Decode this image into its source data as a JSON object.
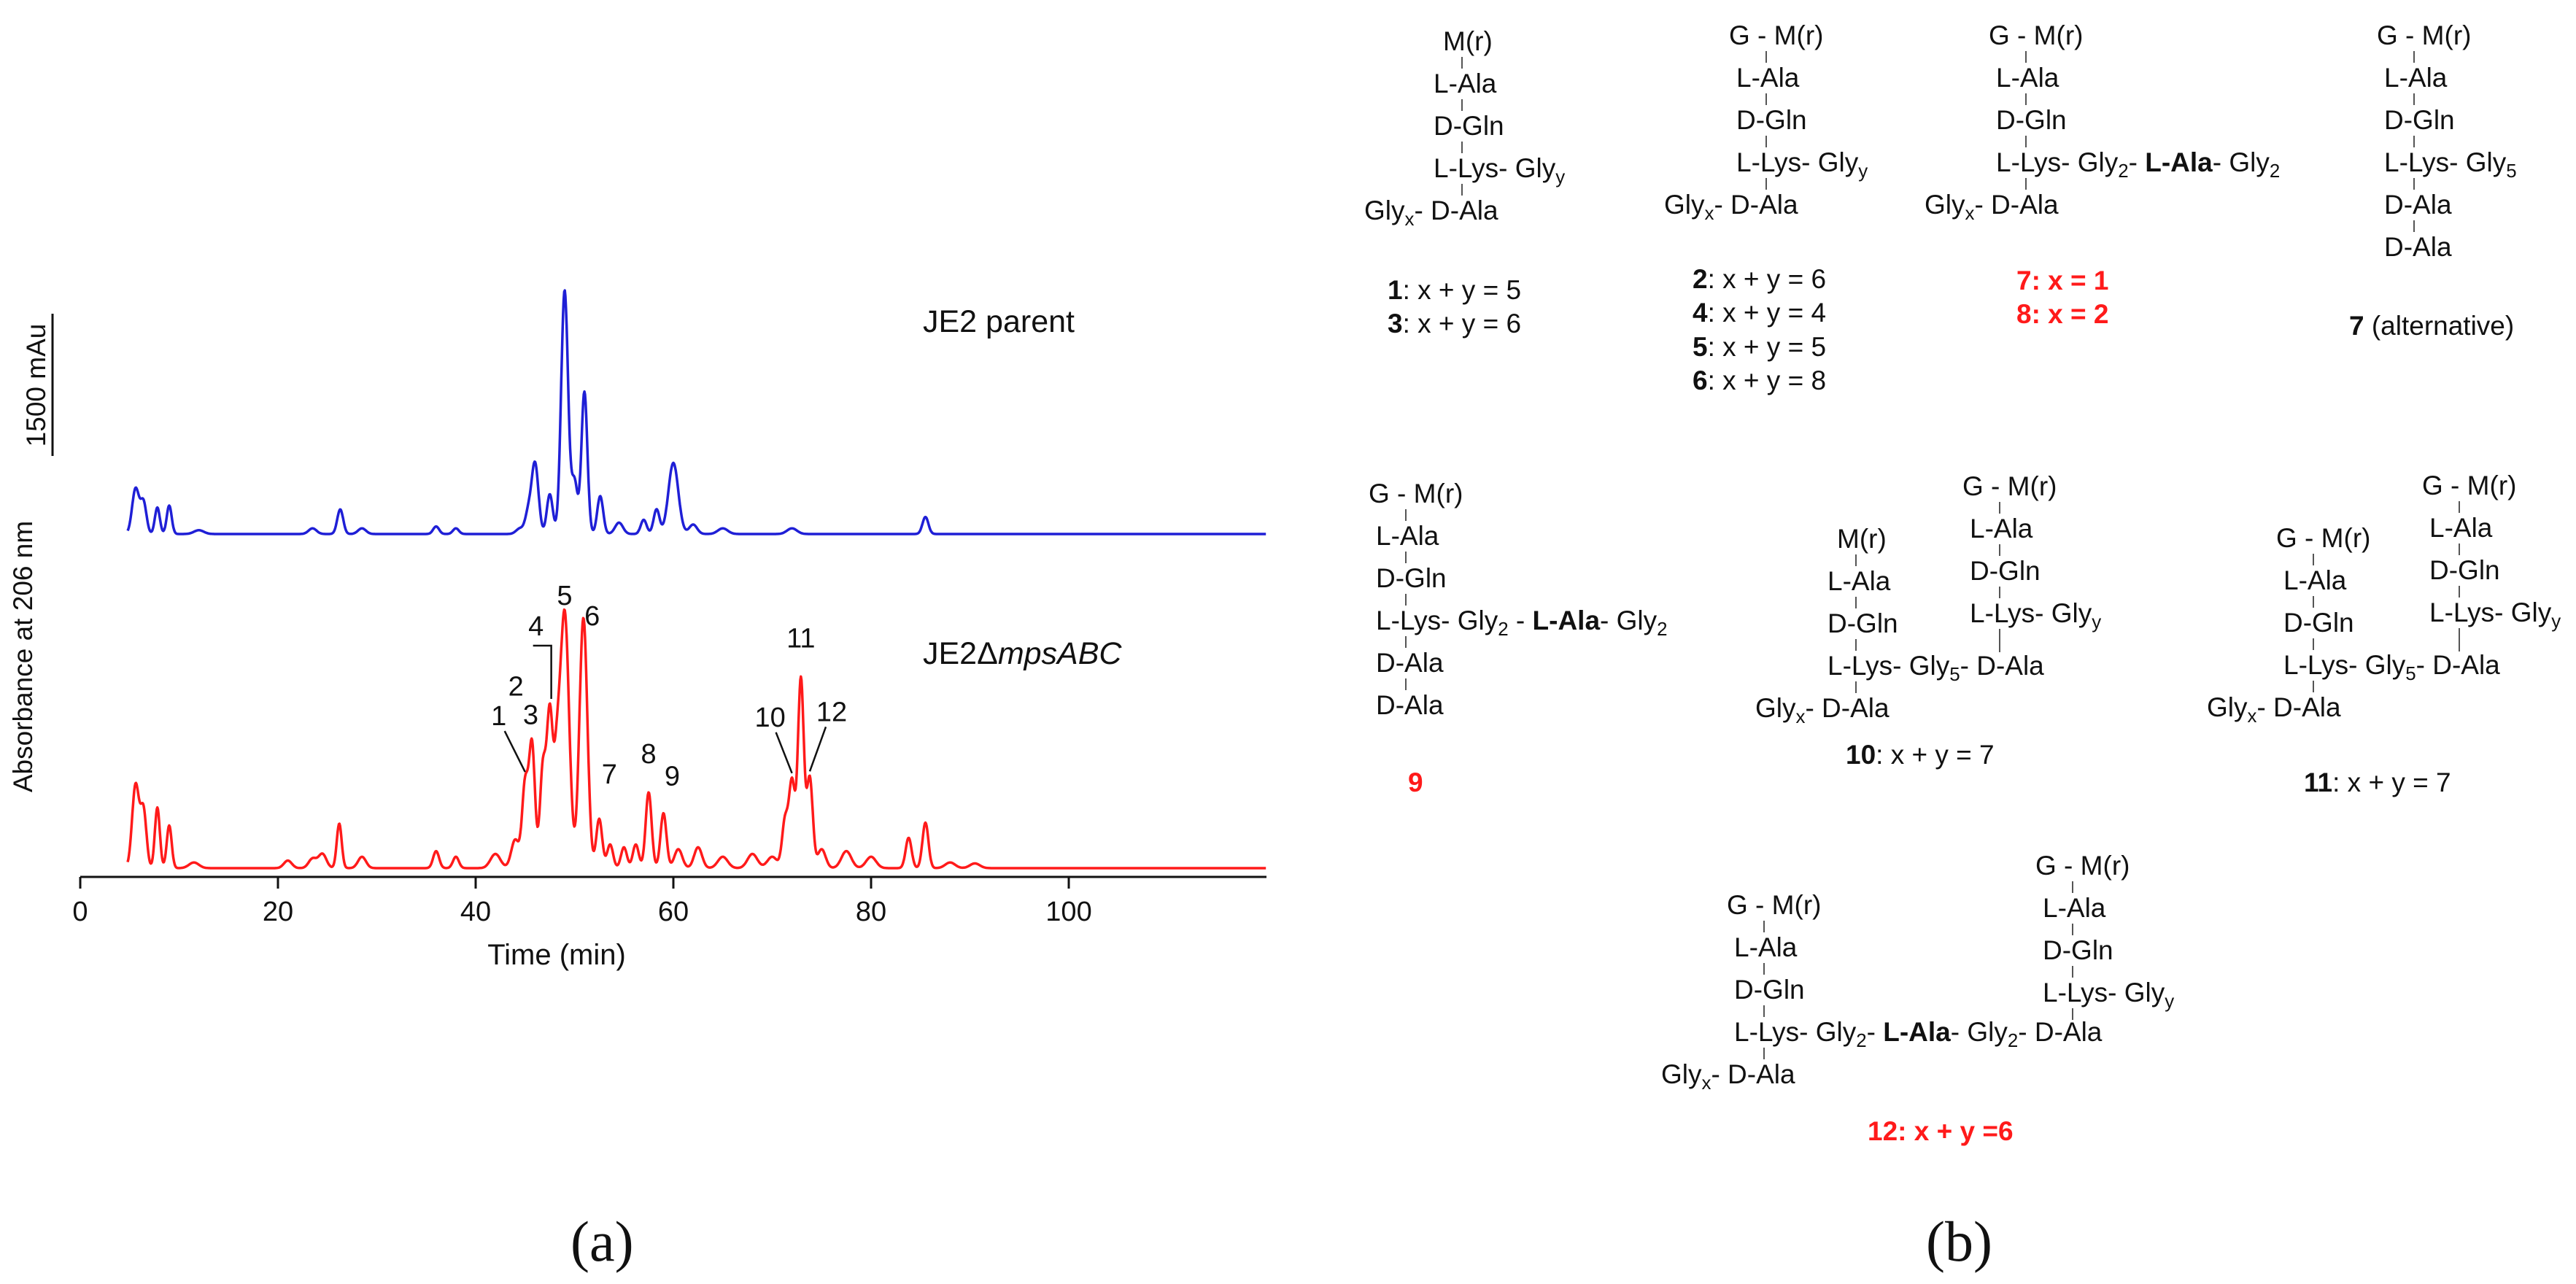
{
  "panels": {
    "a": "(a)",
    "b": "(b)"
  },
  "chart_data": {
    "type": "line",
    "title": "",
    "xlabel": "Time (min)",
    "ylabel": "Absorbance at 206 nm",
    "xlim": [
      0,
      120
    ],
    "xticks": [
      0,
      20,
      40,
      60,
      80,
      100
    ],
    "scale_bar": {
      "label": "1500 mAu",
      "value": 1500
    },
    "colors": {
      "parent": "#1f1fd6",
      "mutant": "#ff1a1a"
    },
    "series": [
      {
        "name": "JE2 parent",
        "label_plain": "JE2 parent",
        "baseline_mAu": 0,
        "peaks": [
          [
            5.6,
            480,
            0.35
          ],
          [
            6.4,
            330,
            0.3
          ],
          [
            7.8,
            280,
            0.25
          ],
          [
            9.0,
            300,
            0.25
          ],
          [
            12.0,
            40,
            0.5
          ],
          [
            23.5,
            60,
            0.4
          ],
          [
            26.3,
            260,
            0.3
          ],
          [
            28.5,
            60,
            0.4
          ],
          [
            36.0,
            80,
            0.3
          ],
          [
            38.0,
            60,
            0.3
          ],
          [
            44.5,
            60,
            0.4
          ],
          [
            45.3,
            200,
            0.3
          ],
          [
            46.0,
            750,
            0.35
          ],
          [
            47.5,
            420,
            0.3
          ],
          [
            49.0,
            2570,
            0.35
          ],
          [
            50.0,
            550,
            0.3
          ],
          [
            51.0,
            1500,
            0.3
          ],
          [
            52.6,
            400,
            0.3
          ],
          [
            54.5,
            120,
            0.4
          ],
          [
            57.0,
            150,
            0.3
          ],
          [
            58.3,
            260,
            0.3
          ],
          [
            60.0,
            750,
            0.5
          ],
          [
            62.0,
            100,
            0.4
          ],
          [
            65.0,
            60,
            0.5
          ],
          [
            72.0,
            60,
            0.5
          ],
          [
            85.5,
            180,
            0.3
          ]
        ]
      },
      {
        "name": "JE2ΔmpsABC",
        "label_prefix": "JE2Δ",
        "label_italic": "mpsABC",
        "baseline_mAu": 0,
        "peaks": [
          [
            5.6,
            880,
            0.35
          ],
          [
            6.4,
            600,
            0.3
          ],
          [
            7.8,
            640,
            0.25
          ],
          [
            9.0,
            450,
            0.25
          ],
          [
            11.5,
            60,
            0.5
          ],
          [
            21.0,
            80,
            0.4
          ],
          [
            23.5,
            100,
            0.4
          ],
          [
            24.5,
            150,
            0.4
          ],
          [
            26.2,
            470,
            0.25
          ],
          [
            28.5,
            120,
            0.4
          ],
          [
            36.0,
            180,
            0.3
          ],
          [
            38.0,
            120,
            0.3
          ],
          [
            42.0,
            150,
            0.5
          ],
          [
            44.0,
            300,
            0.4
          ],
          [
            45.0,
            870,
            0.3
          ],
          [
            45.7,
            1300,
            0.3
          ],
          [
            46.8,
            1050,
            0.3
          ],
          [
            47.5,
            1600,
            0.3
          ],
          [
            48.2,
            900,
            0.3
          ],
          [
            49.0,
            2700,
            0.45
          ],
          [
            50.9,
            2640,
            0.4
          ],
          [
            52.5,
            520,
            0.3
          ],
          [
            53.6,
            250,
            0.3
          ],
          [
            55.0,
            220,
            0.3
          ],
          [
            56.2,
            250,
            0.3
          ],
          [
            57.5,
            800,
            0.3
          ],
          [
            59.0,
            580,
            0.3
          ],
          [
            60.5,
            200,
            0.4
          ],
          [
            62.5,
            220,
            0.4
          ],
          [
            65.0,
            120,
            0.5
          ],
          [
            68.0,
            150,
            0.5
          ],
          [
            70.0,
            120,
            0.5
          ],
          [
            71.3,
            500,
            0.3
          ],
          [
            72.0,
            900,
            0.3
          ],
          [
            72.9,
            2000,
            0.3
          ],
          [
            73.8,
            950,
            0.3
          ],
          [
            75.0,
            200,
            0.4
          ],
          [
            77.5,
            180,
            0.5
          ],
          [
            80.0,
            120,
            0.5
          ],
          [
            83.8,
            320,
            0.3
          ],
          [
            85.5,
            480,
            0.3
          ],
          [
            88.0,
            60,
            0.5
          ],
          [
            90.5,
            50,
            0.5
          ]
        ]
      }
    ],
    "peak_labels": [
      {
        "label": "1",
        "time": 45.0
      },
      {
        "label": "2",
        "time": 45.7
      },
      {
        "label": "3",
        "time": 46.9
      },
      {
        "label": "4",
        "time": 47.5
      },
      {
        "label": "5",
        "time": 49.0
      },
      {
        "label": "6",
        "time": 50.9
      },
      {
        "label": "7",
        "time": 52.5
      },
      {
        "label": "8",
        "time": 57.5
      },
      {
        "label": "9",
        "time": 59.0
      },
      {
        "label": "10",
        "time": 72.0
      },
      {
        "label": "11",
        "time": 72.9
      },
      {
        "label": "12",
        "time": 73.8
      }
    ]
  },
  "structures": {
    "s1": {
      "head": "M(r)",
      "ala": "L-Ala",
      "gln": "D-Gln",
      "lys": "L-Lys-",
      "gly_y": "Gly",
      "sub_y": "y",
      "gly_x": "Gly",
      "sub_x": "x",
      "dala": "- D-Ala"
    },
    "s1_caption": [
      {
        "num": "1",
        "text": ": x + y = 5"
      },
      {
        "num": "3",
        "text": ": x + y = 6"
      }
    ],
    "s2": {
      "g": "G",
      "head": "M(r)",
      "ala": "L-Ala",
      "gln": "D-Gln",
      "lys": "L-Lys-",
      "gly_y": "Gly",
      "sub_y": "y",
      "gly_x": "Gly",
      "sub_x": "x",
      "dala": "- D-Ala"
    },
    "s2_caption": [
      {
        "num": "2",
        "text": ": x + y = 6"
      },
      {
        "num": "4",
        "text": ": x + y = 4"
      },
      {
        "num": "5",
        "text": ": x + y = 5"
      },
      {
        "num": "6",
        "text": ": x + y = 8"
      }
    ],
    "s3": {
      "g": "G",
      "head": "M(r)",
      "ala": "L-Ala",
      "gln": "D-Gln",
      "lys": "L-Lys-",
      "gly2a": "Gly",
      "sub2a": "2",
      "lala": "L-Ala",
      "gly2b": "Gly",
      "sub2b": "2",
      "gly_x": "Gly",
      "sub_x": "x",
      "dala": "- D-Ala"
    },
    "s3_caption": [
      "7: x = 1",
      "8: x = 2"
    ],
    "s4": {
      "g": "G",
      "head": "M(r)",
      "ala": "L-Ala",
      "gln": "D-Gln",
      "lys": "L-Lys-",
      "gly5": "Gly",
      "sub5": "5",
      "dala1": "D-Ala",
      "dala2": "D-Ala"
    },
    "s4_caption": {
      "num": "7",
      "text": " (alternative)"
    },
    "s9": {
      "g": "G",
      "head": "M(r)",
      "ala": "L-Ala",
      "gln": "D-Gln",
      "lys": "L-Lys-",
      "gly2a": "Gly",
      "sub2a": "2",
      "lala": "L-Ala",
      "gly2b": "Gly",
      "sub2b": "2",
      "dala1": "D-Ala",
      "dala2": "D-Ala"
    },
    "s9_caption": "9",
    "s10": {
      "left": {
        "head": "M(r)",
        "ala": "L-Ala",
        "gln": "D-Gln",
        "lys": "L-Lys-",
        "gly5": "Gly",
        "sub5": "5",
        "gly_x": "Gly",
        "sub_x": "x",
        "dala": "- D-Ala"
      },
      "right": {
        "g": "G",
        "head": "M(r)",
        "ala": "L-Ala",
        "gln": "D-Gln",
        "lys": "L-Lys-",
        "gly_y": "Gly",
        "sub_y": "y",
        "dala": "- D-Ala"
      }
    },
    "s10_caption": {
      "num": "10",
      "text": ": x + y = 7"
    },
    "s11": {
      "left": {
        "g": "G",
        "head": "M(r)",
        "ala": "L-Ala",
        "gln": "D-Gln",
        "lys": "L-Lys-",
        "gly5": "Gly",
        "sub5": "5",
        "gly_x": "Gly",
        "sub_x": "x",
        "dala": "- D-Ala"
      },
      "right": {
        "g": "G",
        "head": "M(r)",
        "ala": "L-Ala",
        "gln": "D-Gln",
        "lys": "L-Lys-",
        "gly_y": "Gly",
        "sub_y": "y",
        "dala": "- D-Ala"
      }
    },
    "s11_caption": {
      "num": "11",
      "text": ": x + y = 7"
    },
    "s12": {
      "left": {
        "g": "G",
        "head": "M(r)",
        "ala": "L-Ala",
        "gln": "D-Gln",
        "lys": "L-Lys-",
        "gly2a": "Gly",
        "sub2a": "2",
        "lala": "L-Ala",
        "gly2b": "Gly",
        "sub2b": "2",
        "gly_x": "Gly",
        "sub_x": "x",
        "dala": "- D-Ala"
      },
      "right": {
        "g": "G",
        "head": "M(r)",
        "ala": "L-Ala",
        "gln": "D-Gln",
        "lys": "L-Lys-",
        "gly_y": "Gly",
        "sub_y": "y",
        "dala": "- D-Ala"
      }
    },
    "s12_caption": "12: x + y =6"
  }
}
